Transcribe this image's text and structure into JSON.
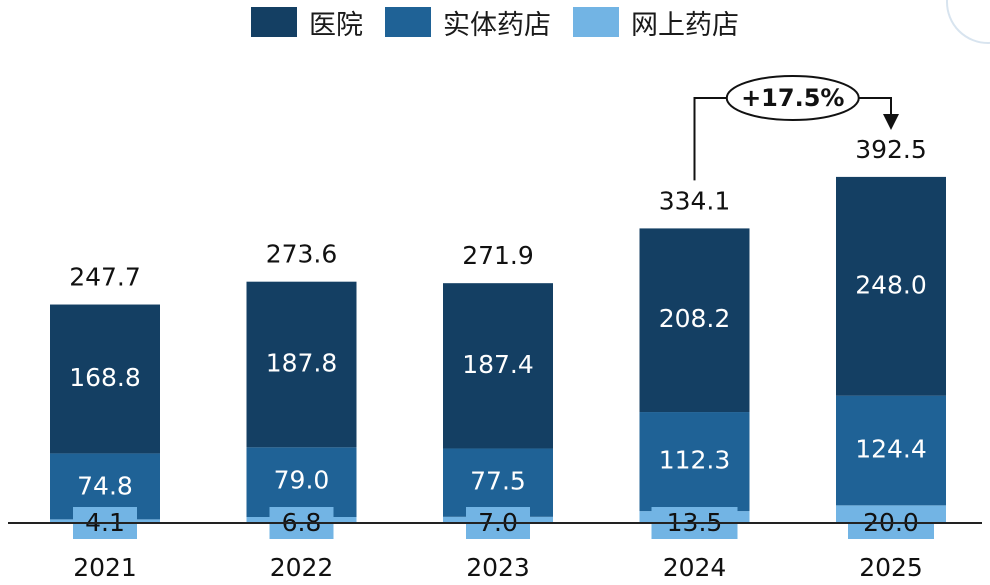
{
  "legend": [
    {
      "label": "医院",
      "color": "#143f63"
    },
    {
      "label": "实体药店",
      "color": "#1f6296"
    },
    {
      "label": "网上药店",
      "color": "#72b4e4"
    }
  ],
  "chart_data": {
    "type": "bar",
    "stacked": true,
    "categories": [
      "2021",
      "2022",
      "2023",
      "2024",
      "2025"
    ],
    "series": [
      {
        "name": "网上药店",
        "color": "#72b4e4",
        "values": [
          4.1,
          6.8,
          7.0,
          13.5,
          20.0
        ]
      },
      {
        "name": "实体药店",
        "color": "#1f6296",
        "values": [
          74.8,
          79.0,
          77.5,
          112.3,
          124.4
        ]
      },
      {
        "name": "医院",
        "color": "#143f63",
        "values": [
          168.8,
          187.8,
          187.4,
          208.2,
          248.0
        ]
      }
    ],
    "totals": [
      "247.7",
      "273.6",
      "271.9",
      "334.1",
      "392.5"
    ],
    "segment_labels": [
      [
        "4.1",
        "74.8",
        "168.8"
      ],
      [
        "6.8",
        "79.0",
        "187.8"
      ],
      [
        "7.0",
        "77.5",
        "187.4"
      ],
      [
        "13.5",
        "112.3",
        "208.2"
      ],
      [
        "20.0",
        "124.4",
        "248.0"
      ]
    ],
    "growth_annotation": {
      "text": "+17.5%",
      "from": "2024",
      "to": "2025"
    },
    "legend_position": "top-center",
    "grid": false
  }
}
